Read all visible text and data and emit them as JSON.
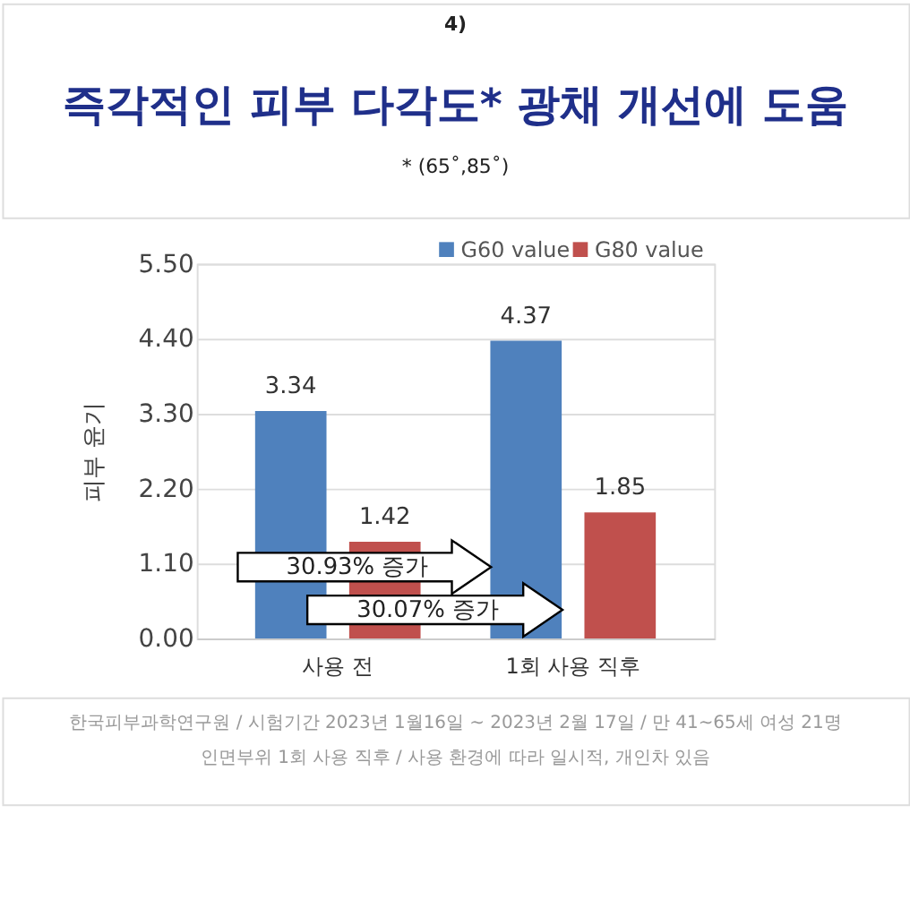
{
  "chart_data": {
    "type": "bar",
    "title": "즉각적인 피부 다각도* 광채 개선에 도움",
    "ylabel": "피부 윤기",
    "categories": [
      "사용 전",
      "1회 사용 직후"
    ],
    "series": [
      {
        "name": "G60 value",
        "color": "#4f81bd",
        "values": [
          3.34,
          4.37
        ]
      },
      {
        "name": "G80 value",
        "color": "#c0504d",
        "values": [
          1.42,
          1.85
        ]
      }
    ],
    "ylim": [
      0,
      5.5
    ],
    "yticks": [
      {
        "value": 0,
        "label": "0.00"
      },
      {
        "value": 1.1,
        "label": "1.10"
      },
      {
        "value": 2.2,
        "label": "2.20"
      },
      {
        "value": 3.3,
        "label": "3.30"
      },
      {
        "value": 4.4,
        "label": "4.40"
      },
      {
        "value": 5.5,
        "label": "5.50"
      }
    ],
    "grid": "y",
    "legend": "top right",
    "data_labels": true,
    "annotations": [
      "4)",
      "* (65˚,85˚)",
      "30.93% 증가",
      "30.07% 증가",
      "한국피부과학연구원 / 시험기간 2023년 1월16일 ~ 2023년 2월 17일 / 만 41~65세 여성 21명",
      "인면부위 1회 사용 직후  / 사용 환경에 따라 일시적, 개인차 있음"
    ]
  }
}
